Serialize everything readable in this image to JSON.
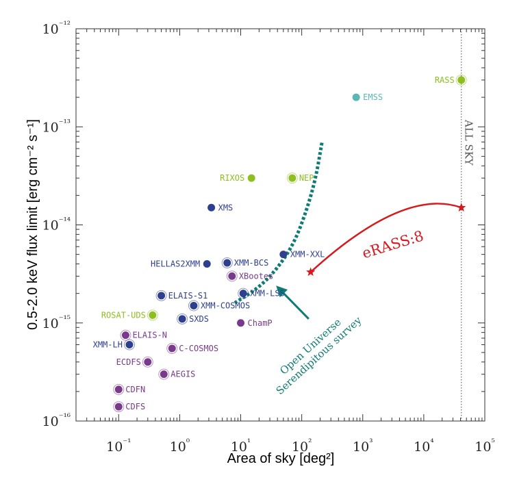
{
  "chart_data": {
    "type": "scatter",
    "xlabel": "Area of sky [deg²]",
    "ylabel": "0.5-2.0 keV flux limit [erg cm⁻² s⁻¹]",
    "xscale": "log",
    "yscale": "log",
    "xlim": [
      0.02,
      100000
    ],
    "ylim": [
      1e-16,
      1e-12
    ],
    "x_ticks": [
      "10⁻¹",
      "10⁰",
      "10¹",
      "10²",
      "10³",
      "10⁴",
      "10⁵"
    ],
    "y_ticks": [
      "10⁻¹⁶",
      "10⁻¹⁵",
      "10⁻¹⁴",
      "10⁻¹³",
      "10⁻¹²"
    ],
    "x_tick_values": [
      0.1,
      1,
      10,
      100,
      1000,
      10000,
      100000
    ],
    "y_tick_values": [
      1e-16,
      1e-15,
      1e-14,
      1e-13,
      1e-12
    ],
    "colors": {
      "green": "#8cbf1f",
      "teal_light": "#5ab8b4",
      "blue": "#2e3f8f",
      "purple": "#7a3a8c",
      "red": "#d7191c",
      "teal_dark": "#0e7c73",
      "gray": "#555555"
    },
    "series": [
      {
        "color_key": "green",
        "points": [
          {
            "label": "RASS",
            "x": 41253,
            "y": 3e-13,
            "ring": true,
            "label_side": "left"
          },
          {
            "label": "RIXOS",
            "x": 15,
            "y": 3e-14,
            "ring": false,
            "label_side": "left"
          },
          {
            "label": "NEP",
            "x": 70,
            "y": 3e-14,
            "ring": true,
            "label_side": "right"
          },
          {
            "label": "ROSAT-UDS",
            "x": 0.36,
            "y": 1.2e-15,
            "ring": true,
            "label_side": "left"
          }
        ]
      },
      {
        "color_key": "teal_light",
        "points": [
          {
            "label": "EMSS",
            "x": 780,
            "y": 2e-13,
            "ring": false,
            "label_side": "right"
          }
        ]
      },
      {
        "color_key": "blue",
        "points": [
          {
            "label": "XMS",
            "x": 3.3,
            "y": 1.5e-14,
            "ring": false,
            "label_side": "right"
          },
          {
            "label": "HELLAS2XMM",
            "x": 2.8,
            "y": 4e-15,
            "ring": false,
            "label_side": "left"
          },
          {
            "label": "XMM-BCS",
            "x": 6,
            "y": 4.1e-15,
            "ring": true,
            "label_side": "right"
          },
          {
            "label": "XMM-XXL",
            "x": 50,
            "y": 5e-15,
            "ring": false,
            "label_side": "right"
          },
          {
            "label": "ELAIS-S1",
            "x": 0.5,
            "y": 1.9e-15,
            "ring": true,
            "label_side": "right"
          },
          {
            "label": "XMM-LSS",
            "x": 11,
            "y": 2e-15,
            "ring": true,
            "label_side": "right"
          },
          {
            "label": "XMM-COSMOS",
            "x": 1.7,
            "y": 1.5e-15,
            "ring": true,
            "label_side": "right"
          },
          {
            "label": "SXDS",
            "x": 1.1,
            "y": 1.1e-15,
            "ring": true,
            "label_side": "right"
          },
          {
            "label": "XMM-LH",
            "x": 0.15,
            "y": 6e-16,
            "ring": true,
            "label_side": "left"
          }
        ]
      },
      {
        "color_key": "purple",
        "points": [
          {
            "label": "XBootes",
            "x": 7.2,
            "y": 3e-15,
            "ring": true,
            "label_side": "right"
          },
          {
            "label": "ChamP",
            "x": 10,
            "y": 1e-15,
            "ring": false,
            "label_side": "right"
          },
          {
            "label": "ELAIS-N",
            "x": 0.13,
            "y": 7.5e-16,
            "ring": true,
            "label_side": "right"
          },
          {
            "label": "C-COSMOS",
            "x": 0.75,
            "y": 5.5e-16,
            "ring": true,
            "label_side": "right"
          },
          {
            "label": "ECDFS",
            "x": 0.3,
            "y": 4e-16,
            "ring": true,
            "label_side": "left"
          },
          {
            "label": "AEGIS",
            "x": 0.55,
            "y": 3e-16,
            "ring": true,
            "label_side": "right"
          },
          {
            "label": "CDFN",
            "x": 0.1,
            "y": 2.1e-16,
            "ring": true,
            "label_side": "right"
          },
          {
            "label": "CDFS",
            "x": 0.1,
            "y": 1.4e-16,
            "ring": true,
            "label_side": "right"
          }
        ]
      }
    ],
    "all_sky": {
      "label": "ALL SKY",
      "x": 41253
    },
    "erass": {
      "label": "eRASS:8",
      "start": {
        "x": 140,
        "y": 3.3e-15
      },
      "end": {
        "x": 41253,
        "y": 1.5e-14
      }
    },
    "open_universe": {
      "label_line1": "Open Universe",
      "label_line2": "Serendipitous survey",
      "curve": [
        {
          "x": 8,
          "y": 1.6e-15
        },
        {
          "x": 20,
          "y": 2.3e-15
        },
        {
          "x": 40,
          "y": 3.6e-15
        },
        {
          "x": 75,
          "y": 6.5e-15
        },
        {
          "x": 120,
          "y": 1.4e-14
        },
        {
          "x": 170,
          "y": 3e-14
        },
        {
          "x": 215,
          "y": 7e-14
        }
      ],
      "arrow_from": {
        "x": 130,
        "y": 1.1e-15
      },
      "arrow_to": {
        "x": 38,
        "y": 2.4e-15
      }
    }
  }
}
